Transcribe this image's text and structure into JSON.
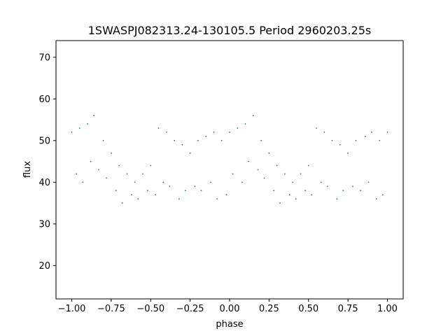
{
  "chart_data": {
    "type": "scatter",
    "title": "1SWASPJ082313.24-130105.5 Period 2960203.25s",
    "xlabel": "phase",
    "ylabel": "flux",
    "xlim": [
      -1.1,
      1.1
    ],
    "ylim": [
      12,
      74
    ],
    "xticks": [
      -1.0,
      -0.75,
      -0.5,
      -0.25,
      0.0,
      0.25,
      0.5,
      0.75,
      1.0
    ],
    "xtick_labels": [
      "−1.00",
      "−0.75",
      "−0.50",
      "−0.25",
      "0.00",
      "0.25",
      "0.50",
      "0.75",
      "1.00"
    ],
    "yticks": [
      20,
      30,
      40,
      50,
      60,
      70
    ],
    "ytick_labels": [
      "20",
      "30",
      "40",
      "50",
      "60",
      "70"
    ],
    "grid": false,
    "point_color": "#1f77b4",
    "series": [
      {
        "x": [
          -1.0,
          -0.97,
          -0.95,
          -0.93,
          -0.9,
          -0.88,
          -0.86,
          -0.83,
          -0.8,
          -0.78,
          -0.75,
          -0.72,
          -0.7,
          -0.68,
          -0.65,
          -0.62,
          -0.6,
          -0.58,
          -0.55,
          -0.52,
          -0.5,
          -0.47,
          -0.45,
          -0.42,
          -0.4,
          -0.38,
          -0.35,
          -0.32,
          -0.3,
          -0.28,
          -0.25,
          -0.22,
          -0.2,
          -0.18,
          -0.15,
          -0.12,
          -0.1,
          -0.08,
          -0.05,
          -0.02,
          0.0,
          0.02,
          0.05,
          0.08,
          0.1,
          0.12,
          0.15,
          0.18,
          0.2,
          0.22,
          0.25,
          0.28,
          0.3,
          0.32,
          0.35,
          0.38,
          0.4,
          0.42,
          0.45,
          0.48,
          0.5,
          0.52,
          0.55,
          0.58,
          0.6,
          0.62,
          0.65,
          0.68,
          0.7,
          0.72,
          0.75,
          0.78,
          0.8,
          0.83,
          0.86,
          0.88,
          0.9,
          0.93,
          0.95,
          0.97,
          1.0
        ],
        "y": [
          52,
          42,
          53,
          40,
          54,
          45,
          56,
          43,
          50,
          41,
          47,
          38,
          44,
          35,
          42,
          37,
          40,
          36,
          42,
          38,
          44,
          37,
          53,
          40,
          52,
          39,
          50,
          36,
          49,
          38,
          47,
          39,
          50,
          38,
          51,
          40,
          52,
          36,
          50,
          37,
          52,
          42,
          53,
          40,
          54,
          45,
          56,
          43,
          50,
          41,
          47,
          38,
          44,
          35,
          42,
          37,
          40,
          36,
          42,
          38,
          44,
          37,
          53,
          40,
          52,
          39,
          50,
          36,
          49,
          38,
          47,
          39,
          50,
          38,
          51,
          40,
          52,
          36,
          50,
          37,
          52
        ]
      }
    ]
  }
}
